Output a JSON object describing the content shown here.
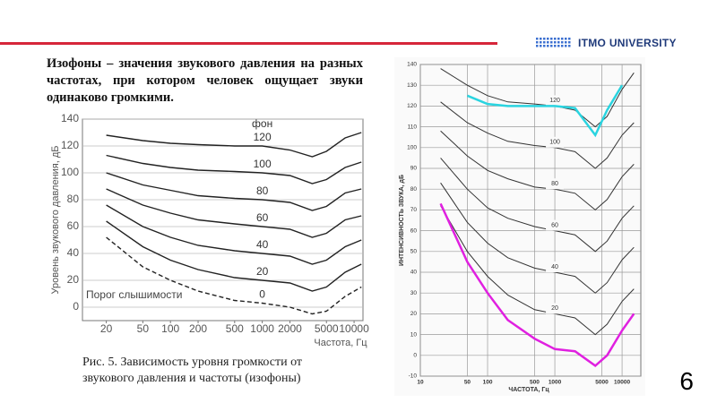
{
  "header": {
    "logo": "ITMO UNIVERSITY"
  },
  "text": "Изофоны –  значения звукового давления на разных частотах, при котором человек ощущает звуки одинаково громкими.",
  "caption": "Рис.  5. Зависимость уровня громкости от звукового давления и частоты (изофоны)",
  "page_number": "6",
  "chart_data": [
    {
      "type": "line",
      "y_label": "Уровень звукового давления, дБ",
      "x_label": "Частота, Гц",
      "log_x": true,
      "grid": true,
      "x": [
        20,
        50,
        100,
        200,
        500,
        1000,
        2000,
        3500,
        5000,
        8000,
        12000
      ],
      "xlim": [
        11,
        12500
      ],
      "xticks": [
        20,
        50,
        100,
        200,
        500,
        1000,
        2000,
        5000,
        10000
      ],
      "ylim": [
        -10,
        140
      ],
      "yticks": [
        0,
        20,
        40,
        60,
        80,
        100,
        120,
        140
      ],
      "annotations": [
        "фон",
        "Порог слышимости"
      ],
      "series": [
        {
          "name": "120",
          "color": "#222222",
          "values": [
            128,
            124,
            122,
            121,
            120,
            120,
            117,
            112,
            116,
            126,
            130
          ]
        },
        {
          "name": "100",
          "color": "#222222",
          "values": [
            113,
            107,
            104,
            102,
            101,
            100,
            98,
            92,
            95,
            104,
            108
          ]
        },
        {
          "name": "80",
          "color": "#222222",
          "values": [
            100,
            91,
            87,
            83,
            81,
            80,
            78,
            72,
            75,
            85,
            88
          ]
        },
        {
          "name": "60",
          "color": "#222222",
          "values": [
            88,
            76,
            70,
            65,
            62,
            60,
            58,
            52,
            55,
            65,
            68
          ]
        },
        {
          "name": "40",
          "color": "#222222",
          "values": [
            76,
            60,
            52,
            46,
            42,
            40,
            38,
            32,
            35,
            45,
            50
          ]
        },
        {
          "name": "20",
          "color": "#222222",
          "values": [
            64,
            45,
            35,
            28,
            22,
            20,
            18,
            12,
            15,
            26,
            32
          ]
        },
        {
          "name": "0",
          "color": "#222222",
          "dashed": true,
          "values": [
            52,
            30,
            20,
            12,
            5,
            3,
            0,
            -5,
            -3,
            8,
            15
          ]
        }
      ]
    },
    {
      "type": "line",
      "y_label": "ИНТЕНСИВНОСТЬ ЗВУКА, дБ",
      "x_label": "ЧАСТОТА, Гц",
      "log_x": true,
      "grid": true,
      "x": [
        20,
        50,
        100,
        200,
        500,
        1000,
        2000,
        4000,
        6000,
        10000,
        15000
      ],
      "xlim": [
        10,
        19000
      ],
      "xticks": [
        10,
        50,
        100,
        500,
        1000,
        5000,
        10000
      ],
      "ylim": [
        -10,
        140
      ],
      "yticks": [
        -10,
        0,
        10,
        20,
        30,
        40,
        50,
        60,
        70,
        80,
        90,
        100,
        110,
        120,
        130,
        140
      ],
      "series": [
        {
          "name": "120",
          "color": "#333333",
          "values": [
            138,
            130,
            125,
            122,
            121,
            120,
            118,
            110,
            115,
            128,
            136
          ]
        },
        {
          "name": "100",
          "color": "#333333",
          "values": [
            122,
            112,
            107,
            103,
            101,
            100,
            98,
            90,
            95,
            106,
            112
          ]
        },
        {
          "name": "80",
          "color": "#333333",
          "values": [
            108,
            96,
            89,
            85,
            81,
            80,
            78,
            70,
            75,
            86,
            92
          ]
        },
        {
          "name": "60",
          "color": "#333333",
          "values": [
            95,
            80,
            71,
            66,
            62,
            60,
            58,
            50,
            55,
            66,
            72
          ]
        },
        {
          "name": "40",
          "color": "#333333",
          "values": [
            83,
            64,
            54,
            47,
            42,
            40,
            38,
            30,
            35,
            46,
            52
          ]
        },
        {
          "name": "20",
          "color": "#333333",
          "values": [
            72,
            50,
            38,
            29,
            22,
            20,
            18,
            10,
            15,
            26,
            32
          ]
        },
        {
          "color": "#2ad4e0",
          "values": [
            null,
            125,
            121,
            120,
            120,
            120,
            119,
            106,
            118,
            130,
            null
          ]
        },
        {
          "color": "#e020e0",
          "values": [
            73,
            45,
            30,
            17,
            8,
            3,
            2,
            -5,
            0,
            12,
            20
          ]
        }
      ]
    }
  ]
}
